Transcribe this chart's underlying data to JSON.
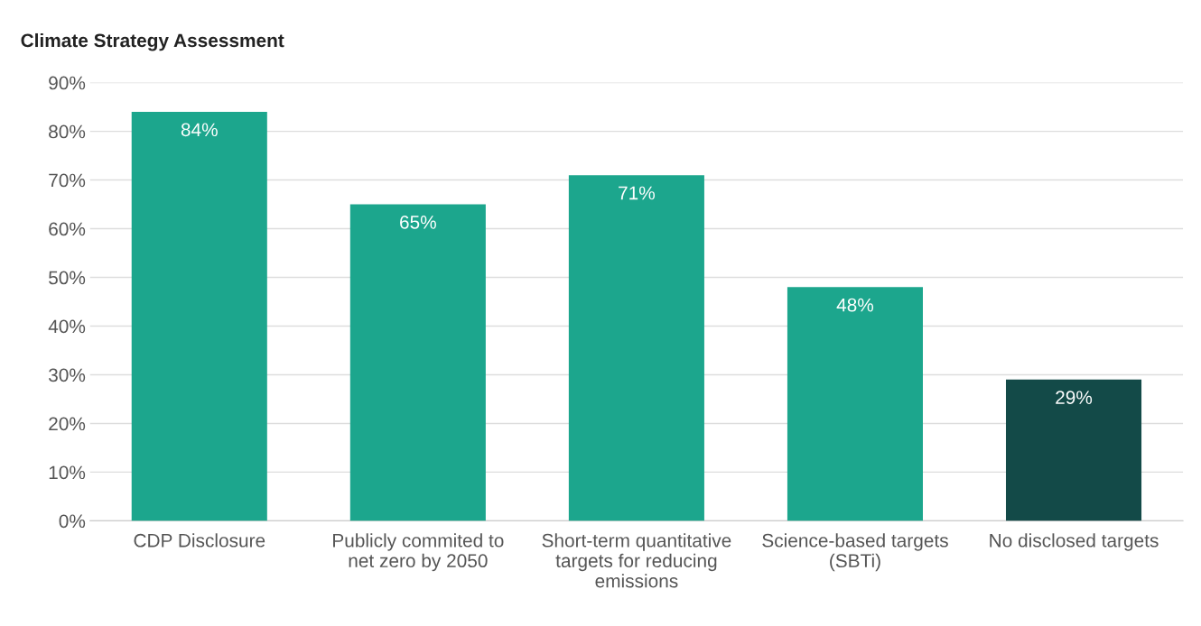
{
  "chart_data": {
    "type": "bar",
    "title": "Climate Strategy Assessment",
    "categories": [
      "CDP Disclosure",
      "Publicly commited to\nnet zero by 2050",
      "Short-term quantitative\ntargets for reducing\nemissions",
      "Science-based targets\n(SBTi)",
      "No disclosed targets"
    ],
    "values": [
      84,
      65,
      71,
      48,
      29
    ],
    "colors": [
      "#1ca68d",
      "#1ca68d",
      "#1ca68d",
      "#1ca68d",
      "#134a48"
    ],
    "value_labels": [
      "84%",
      "65%",
      "71%",
      "48%",
      "29%"
    ],
    "ylim": [
      0,
      90
    ],
    "yticks": [
      {
        "value": 0,
        "label": "0%"
      },
      {
        "value": 10,
        "label": "10%"
      },
      {
        "value": 20,
        "label": "20%"
      },
      {
        "value": 30,
        "label": "30%"
      },
      {
        "value": 40,
        "label": "40%"
      },
      {
        "value": 50,
        "label": "50%"
      },
      {
        "value": 60,
        "label": "60%"
      },
      {
        "value": 70,
        "label": "70%"
      },
      {
        "value": 80,
        "label": "80%"
      },
      {
        "value": 90,
        "label": "90%"
      }
    ],
    "grid": "y",
    "legend": false
  }
}
